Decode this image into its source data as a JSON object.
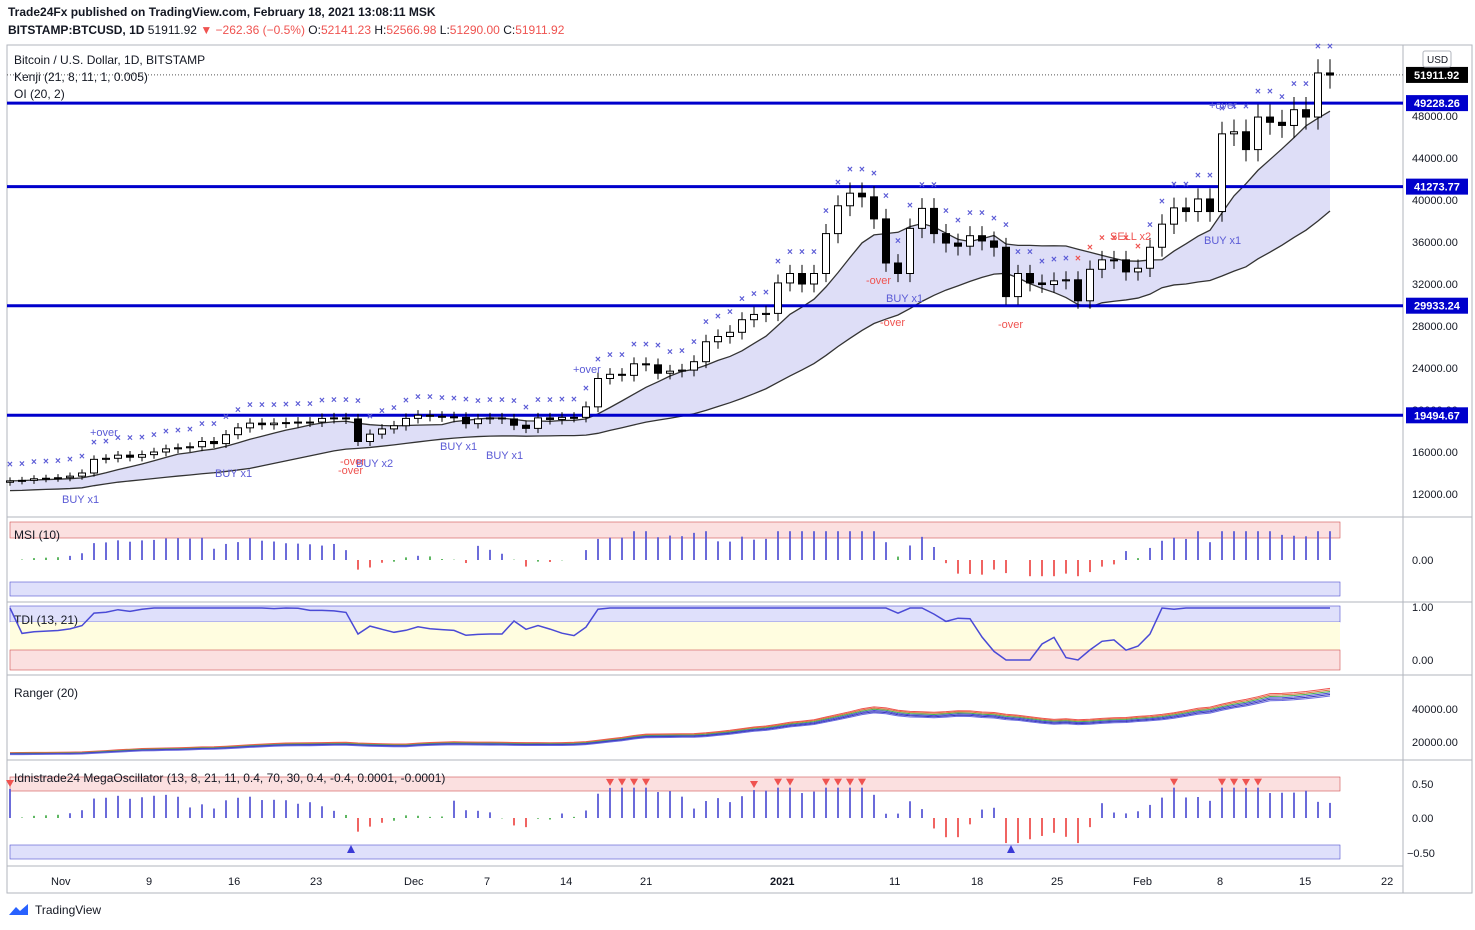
{
  "header": {
    "publisher_line": "Trade24Fx published on TradingView.com, February 18, 2021 13:08:11 MSK",
    "symbol": "BITSTAMP:BTCUSD, 1D",
    "last": "51911.92",
    "change": "−262.36 (−0.5%)",
    "o_label": "O:",
    "o": "52141.23",
    "h_label": "H:",
    "h": "52566.98",
    "l_label": "L:",
    "l": "51290.00",
    "c_label": "C:",
    "c": "51911.92"
  },
  "legend": {
    "title": "Bitcoin / U.S. Dollar, 1D, BITSTAMP",
    "kenji": "Kenji (21, 8, 11, 1, 0.005)",
    "oi": "OI (20, 2)"
  },
  "currency": "USD",
  "brand": "TradingView",
  "colors": {
    "candle_up_fill": "#ffffff",
    "candle_down_fill": "#000000",
    "level_line": "#0000cc",
    "marker": "#5b5bd6",
    "sell_marker": "#ef5350",
    "band_fill": "#d6d6f5",
    "grid_axis": "#b2b5be"
  },
  "chart_data": [
    {
      "type": "candlestick",
      "title": "Bitcoin / U.S. Dollar, 1D, BITSTAMP",
      "ylim": [
        10000,
        54000
      ],
      "y_ticks": [
        "12000.00",
        "16000.00",
        "20000.00",
        "24000.00",
        "28000.00",
        "32000.00",
        "36000.00",
        "40000.00",
        "44000.00",
        "48000.00"
      ],
      "x_ticks": [
        "Nov",
        "9",
        "16",
        "23",
        "Dec",
        "7",
        "14",
        "21",
        "2021",
        "11",
        "18",
        "25",
        "Feb",
        "8",
        "15",
        "22"
      ],
      "price_labels": [
        "51911.92",
        "49228.26",
        "41273.77",
        "29933.24",
        "19494.67"
      ],
      "levels": [
        49228.26,
        41273.77,
        29933.24,
        19494.67
      ],
      "close": [
        13250,
        13300,
        13450,
        13500,
        13550,
        13700,
        14000,
        15300,
        15400,
        15700,
        15500,
        15750,
        16000,
        16300,
        16400,
        16500,
        17000,
        16800,
        17650,
        18300,
        18750,
        18600,
        18750,
        18800,
        18850,
        18850,
        19200,
        19250,
        19150,
        17000,
        17700,
        18200,
        18500,
        19200,
        19500,
        19400,
        19350,
        19300,
        18700,
        19150,
        19250,
        19150,
        18550,
        18250,
        19250,
        19100,
        19300,
        19300,
        20300,
        23000,
        23400,
        23300,
        24400,
        24300,
        23500,
        23700,
        23800,
        24600,
        26500,
        27000,
        27400,
        28600,
        29100,
        29200,
        32100,
        33000,
        32000,
        33000,
        36800,
        39450,
        40650,
        40300,
        38200,
        34000,
        33000,
        37300,
        39200,
        36800,
        35900,
        35600,
        36600,
        36100,
        35500,
        30800,
        33000,
        32100,
        31950,
        32300,
        32400,
        30400,
        33400,
        34300,
        34300,
        33150,
        33500,
        35500,
        37700,
        39250,
        38900,
        40100,
        38900,
        46300,
        46500,
        44800,
        47900,
        47400,
        47100,
        48600,
        47900,
        52100,
        51900
      ],
      "markers": [
        "BUY x1",
        "+over",
        "BUY x1",
        "-over",
        "BUY x2",
        "-over",
        "BUY x1",
        "BUY x1",
        "+over",
        "-over",
        "-over",
        "BUY x1",
        "-over",
        "SELL x2",
        "+over",
        "BUY x1"
      ]
    },
    {
      "type": "bar",
      "title": "MSI (10)",
      "y_ticks": [
        "0.00"
      ]
    },
    {
      "type": "line",
      "title": "TDI (13, 21)",
      "y_ticks": [
        "1.00",
        "0.00"
      ]
    },
    {
      "type": "line",
      "title": "Ranger (20)",
      "y_ticks": [
        "40000.00",
        "20000.00"
      ]
    },
    {
      "type": "bar",
      "title": "Idnistrade24 MegaOscillator (13, 8, 21, 11, 0.4, 70, 30, 0.4, -0.4, 0.0001, -0.0001)",
      "y_ticks": [
        "0.50",
        "0.00",
        "−0.50"
      ]
    }
  ]
}
